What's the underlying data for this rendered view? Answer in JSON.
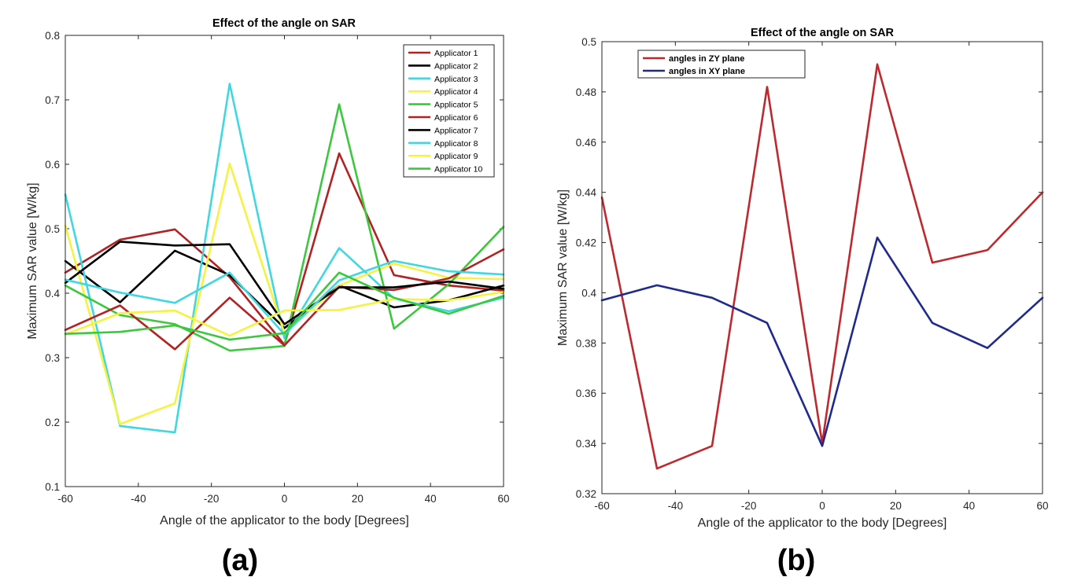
{
  "panel_labels": [
    "(a)",
    "(b)"
  ],
  "chart_data": [
    {
      "type": "line",
      "title": "Effect of the angle on SAR",
      "xlabel": "Angle of the applicator to the body [Degrees]",
      "ylabel": "Maximum SAR value [W/kg]",
      "xlim": [
        -60,
        60
      ],
      "ylim": [
        0.1,
        0.8
      ],
      "xticks": [
        -60,
        -40,
        -20,
        0,
        20,
        40,
        60
      ],
      "yticks": [
        0.1,
        0.2,
        0.3,
        0.4,
        0.5,
        0.6,
        0.7,
        0.8
      ],
      "legend_position": "top-right",
      "x": [
        -60,
        -45,
        -30,
        -15,
        0,
        15,
        30,
        45,
        60
      ],
      "series": [
        {
          "name": "Applicator 1",
          "color": "#b22222",
          "values": [
            0.432,
            0.483,
            0.499,
            0.425,
            0.32,
            0.617,
            0.428,
            0.412,
            0.404
          ]
        },
        {
          "name": "Applicator 2",
          "color": "#000000",
          "values": [
            0.45,
            0.386,
            0.466,
            0.428,
            0.346,
            0.412,
            0.378,
            0.389,
            0.412
          ]
        },
        {
          "name": "Applicator 3",
          "color": "#40d8e0",
          "values": [
            0.553,
            0.194,
            0.184,
            0.725,
            0.33,
            0.47,
            0.392,
            0.372,
            0.393
          ]
        },
        {
          "name": "Applicator 4",
          "color": "#f5f240",
          "values": [
            0.505,
            0.197,
            0.229,
            0.601,
            0.338,
            0.412,
            0.446,
            0.424,
            0.422
          ]
        },
        {
          "name": "Applicator 5",
          "color": "#3cc83c",
          "values": [
            0.412,
            0.366,
            0.352,
            0.311,
            0.318,
            0.693,
            0.345,
            0.414,
            0.503
          ]
        },
        {
          "name": "Applicator 6",
          "color": "#b22222",
          "values": [
            0.343,
            0.381,
            0.313,
            0.393,
            0.319,
            0.41,
            0.405,
            0.423,
            0.468
          ]
        },
        {
          "name": "Applicator 7",
          "color": "#000000",
          "values": [
            0.416,
            0.48,
            0.474,
            0.476,
            0.352,
            0.409,
            0.409,
            0.418,
            0.407
          ]
        },
        {
          "name": "Applicator 8",
          "color": "#40d8e0",
          "values": [
            0.421,
            0.401,
            0.385,
            0.432,
            0.336,
            0.42,
            0.45,
            0.434,
            0.429
          ]
        },
        {
          "name": "Applicator 9",
          "color": "#f5f240",
          "values": [
            0.336,
            0.369,
            0.373,
            0.334,
            0.373,
            0.374,
            0.391,
            0.389,
            0.402
          ]
        },
        {
          "name": "Applicator 10",
          "color": "#3cc83c",
          "values": [
            0.337,
            0.34,
            0.35,
            0.328,
            0.338,
            0.432,
            0.393,
            0.368,
            0.396
          ]
        }
      ]
    },
    {
      "type": "line",
      "title": "Effect of the angle on SAR",
      "xlabel": "Angle of the applicator to the body [Degrees]",
      "ylabel": "Maximum SAR value [W/kg]",
      "xlim": [
        -60,
        60
      ],
      "ylim": [
        0.32,
        0.5
      ],
      "xticks": [
        -60,
        -40,
        -20,
        0,
        20,
        40,
        60
      ],
      "yticks": [
        0.32,
        0.34,
        0.36,
        0.38,
        0.4,
        0.42,
        0.44,
        0.46,
        0.48,
        0.5
      ],
      "legend_position": "top-left",
      "x": [
        -60,
        -45,
        -30,
        -15,
        0,
        15,
        30,
        45,
        60
      ],
      "series": [
        {
          "name": "angles in ZY plane",
          "color": "#c0282d",
          "values": [
            0.438,
            0.33,
            0.339,
            0.482,
            0.34,
            0.491,
            0.412,
            0.417,
            0.44
          ]
        },
        {
          "name": "angles in XY plane",
          "color": "#1f2a8c",
          "values": [
            0.397,
            0.403,
            0.398,
            0.388,
            0.339,
            0.422,
            0.388,
            0.378,
            0.398
          ]
        }
      ]
    }
  ]
}
